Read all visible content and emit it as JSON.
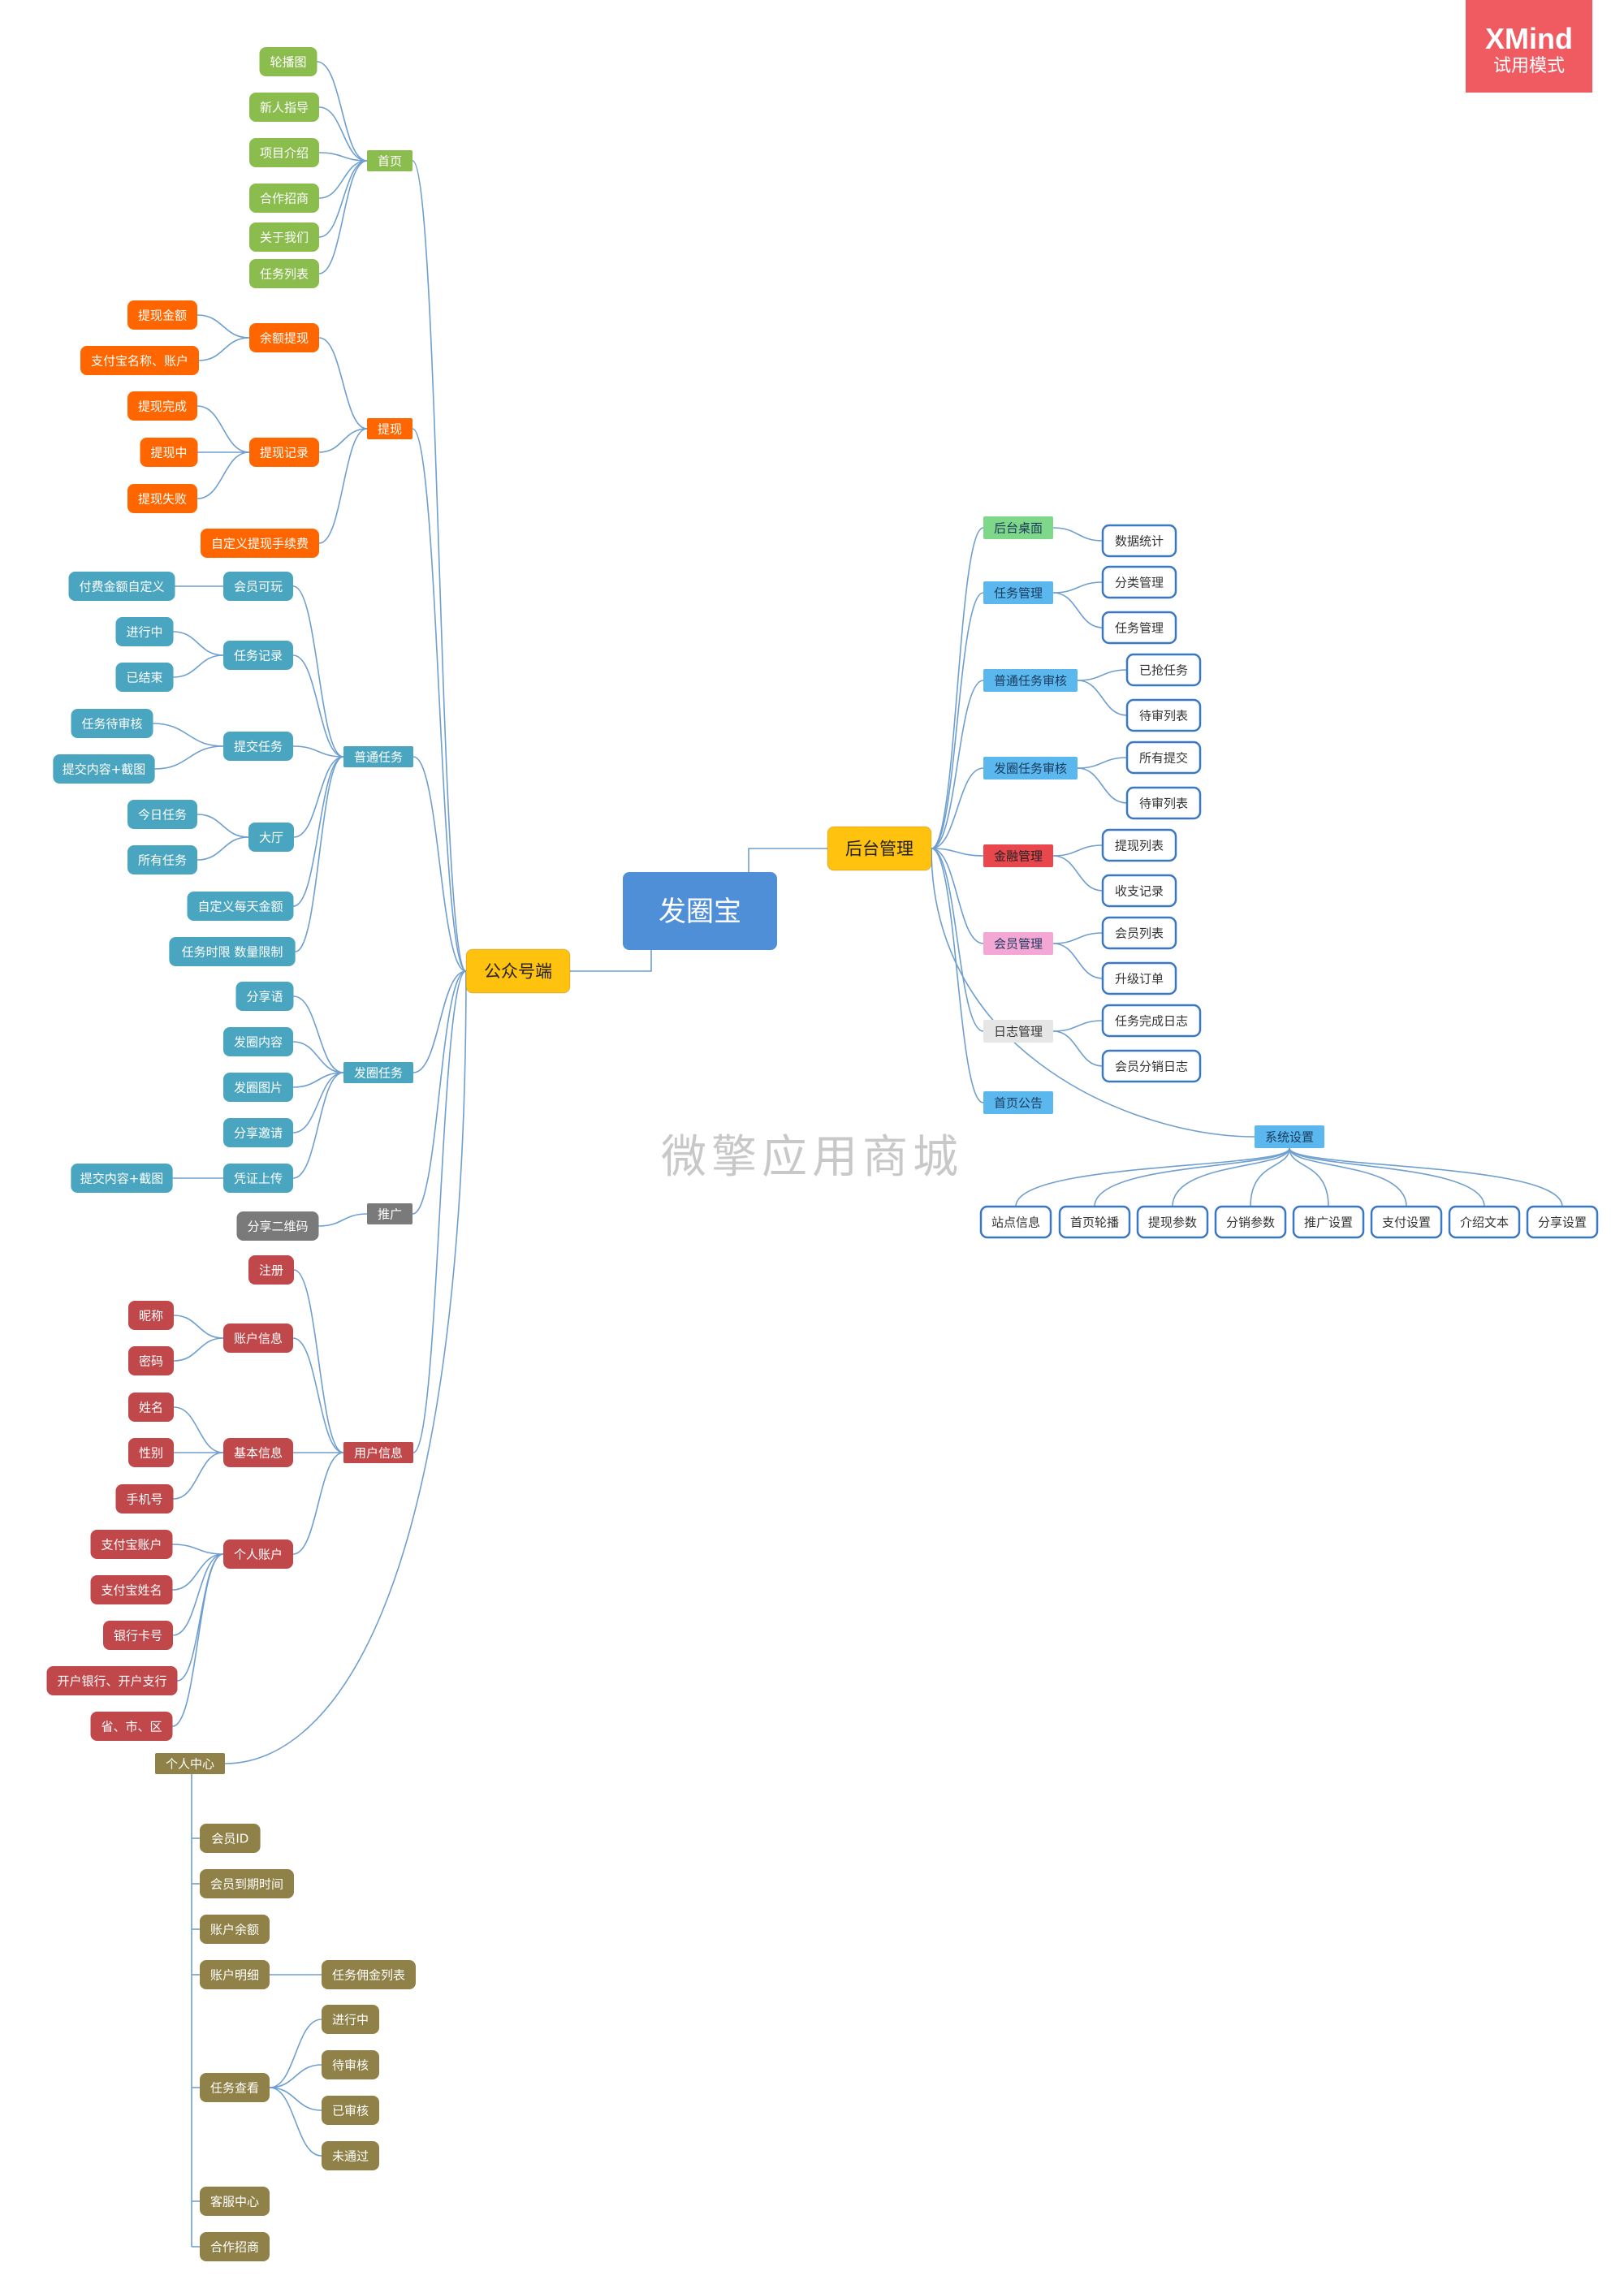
{
  "badge": {
    "brand": "XMind",
    "mode": "试用模式",
    "color": "#f05a61"
  },
  "watermark": "微擎应用商城",
  "root": {
    "label": "发圈宝",
    "color": "#4f8fd8"
  },
  "wechat_branch": {
    "label": "公众号端",
    "color": "#ffc20e"
  },
  "admin_branch": {
    "label": "后台管理",
    "color": "#ffc20e"
  },
  "wechat_groups": [
    {
      "label": "首页",
      "color": "#8bbd4e",
      "children": [
        {
          "label": "轮播图"
        },
        {
          "label": "新人指导"
        },
        {
          "label": "项目介绍"
        },
        {
          "label": "合作招商"
        },
        {
          "label": "关于我们"
        },
        {
          "label": "任务列表"
        }
      ]
    },
    {
      "label": "提现",
      "color": "#ff6600",
      "children": [
        {
          "label": "余额提现",
          "children": [
            {
              "label": "提现金额"
            },
            {
              "label": "支付宝名称、账户"
            }
          ]
        },
        {
          "label": "提现记录",
          "children": [
            {
              "label": "提现完成"
            },
            {
              "label": "提现中"
            },
            {
              "label": "提现失败"
            }
          ]
        },
        {
          "label": "自定义提现手续费"
        }
      ]
    },
    {
      "label": "普通任务",
      "color": "#4aa6c0",
      "children": [
        {
          "label": "会员可玩",
          "children": [
            {
              "label": "付费金额自定义"
            }
          ]
        },
        {
          "label": "任务记录",
          "children": [
            {
              "label": "进行中"
            },
            {
              "label": "已结束"
            }
          ]
        },
        {
          "label": "提交任务",
          "children": [
            {
              "label": "任务待审核"
            },
            {
              "label": "提交内容+截图"
            }
          ]
        },
        {
          "label": "大厅",
          "children": [
            {
              "label": "今日任务"
            },
            {
              "label": "所有任务"
            }
          ]
        },
        {
          "label": "自定义每天金额"
        },
        {
          "label": "任务时限 数量限制"
        }
      ]
    },
    {
      "label": "发圈任务",
      "color": "#4aa6c0",
      "children": [
        {
          "label": "分享语"
        },
        {
          "label": "发圈内容"
        },
        {
          "label": "发圈图片"
        },
        {
          "label": "分享邀请"
        },
        {
          "label": "凭证上传",
          "children": [
            {
              "label": "提交内容+截图"
            }
          ]
        }
      ]
    },
    {
      "label": "推广",
      "color": "#7a7a7a",
      "children": [
        {
          "label": "分享二维码"
        }
      ]
    },
    {
      "label": "用户信息",
      "color": "#c0484b",
      "children": [
        {
          "label": "注册"
        },
        {
          "label": "账户信息",
          "children": [
            {
              "label": "昵称"
            },
            {
              "label": "密码"
            }
          ]
        },
        {
          "label": "基本信息",
          "children": [
            {
              "label": "姓名"
            },
            {
              "label": "性别"
            },
            {
              "label": "手机号"
            }
          ]
        },
        {
          "label": "个人账户",
          "children": [
            {
              "label": "支付宝账户"
            },
            {
              "label": "支付宝姓名"
            },
            {
              "label": "银行卡号"
            },
            {
              "label": "开户银行、开户支行"
            },
            {
              "label": "省、市、区"
            }
          ]
        }
      ]
    },
    {
      "label": "个人中心",
      "color": "#8f8147",
      "children": [
        {
          "label": "会员ID"
        },
        {
          "label": "会员到期时间"
        },
        {
          "label": "账户余额"
        },
        {
          "label": "账户明细",
          "children": [
            {
              "label": "任务佣金列表"
            }
          ]
        },
        {
          "label": "任务查看",
          "children": [
            {
              "label": "进行中"
            },
            {
              "label": "待审核"
            },
            {
              "label": "已审核"
            },
            {
              "label": "未通过"
            }
          ]
        },
        {
          "label": "客服中心"
        },
        {
          "label": "合作招商"
        }
      ]
    }
  ],
  "admin_groups": [
    {
      "label": "后台桌面",
      "color": "#7fd88a",
      "children": [
        {
          "label": "数据统计"
        }
      ]
    },
    {
      "label": "任务管理",
      "color": "#5bb8ef",
      "children": [
        {
          "label": "分类管理"
        },
        {
          "label": "任务管理"
        }
      ]
    },
    {
      "label": "普通任务审核",
      "color": "#5bb8ef",
      "children": [
        {
          "label": "已抢任务"
        },
        {
          "label": "待审列表"
        }
      ]
    },
    {
      "label": "发圈任务审核",
      "color": "#5bb8ef",
      "children": [
        {
          "label": "所有提交"
        },
        {
          "label": "待审列表"
        }
      ]
    },
    {
      "label": "金融管理",
      "color": "#e8474d",
      "children": [
        {
          "label": "提现列表"
        },
        {
          "label": "收支记录"
        }
      ]
    },
    {
      "label": "会员管理",
      "color": "#f4a6d5",
      "children": [
        {
          "label": "会员列表"
        },
        {
          "label": "升级订单"
        }
      ]
    },
    {
      "label": "日志管理",
      "color": "#e6e6e6",
      "children": [
        {
          "label": "任务完成日志"
        },
        {
          "label": "会员分销日志"
        }
      ]
    },
    {
      "label": "首页公告",
      "color": "#5bb8ef",
      "children": []
    },
    {
      "label": "系统设置",
      "color": "#5bb8ef",
      "children": [
        {
          "label": "站点信息"
        },
        {
          "label": "首页轮播"
        },
        {
          "label": "提现参数"
        },
        {
          "label": "分销参数"
        },
        {
          "label": "推广设置"
        },
        {
          "label": "支付设置"
        },
        {
          "label": "介绍文本"
        },
        {
          "label": "分享设置"
        }
      ]
    }
  ]
}
